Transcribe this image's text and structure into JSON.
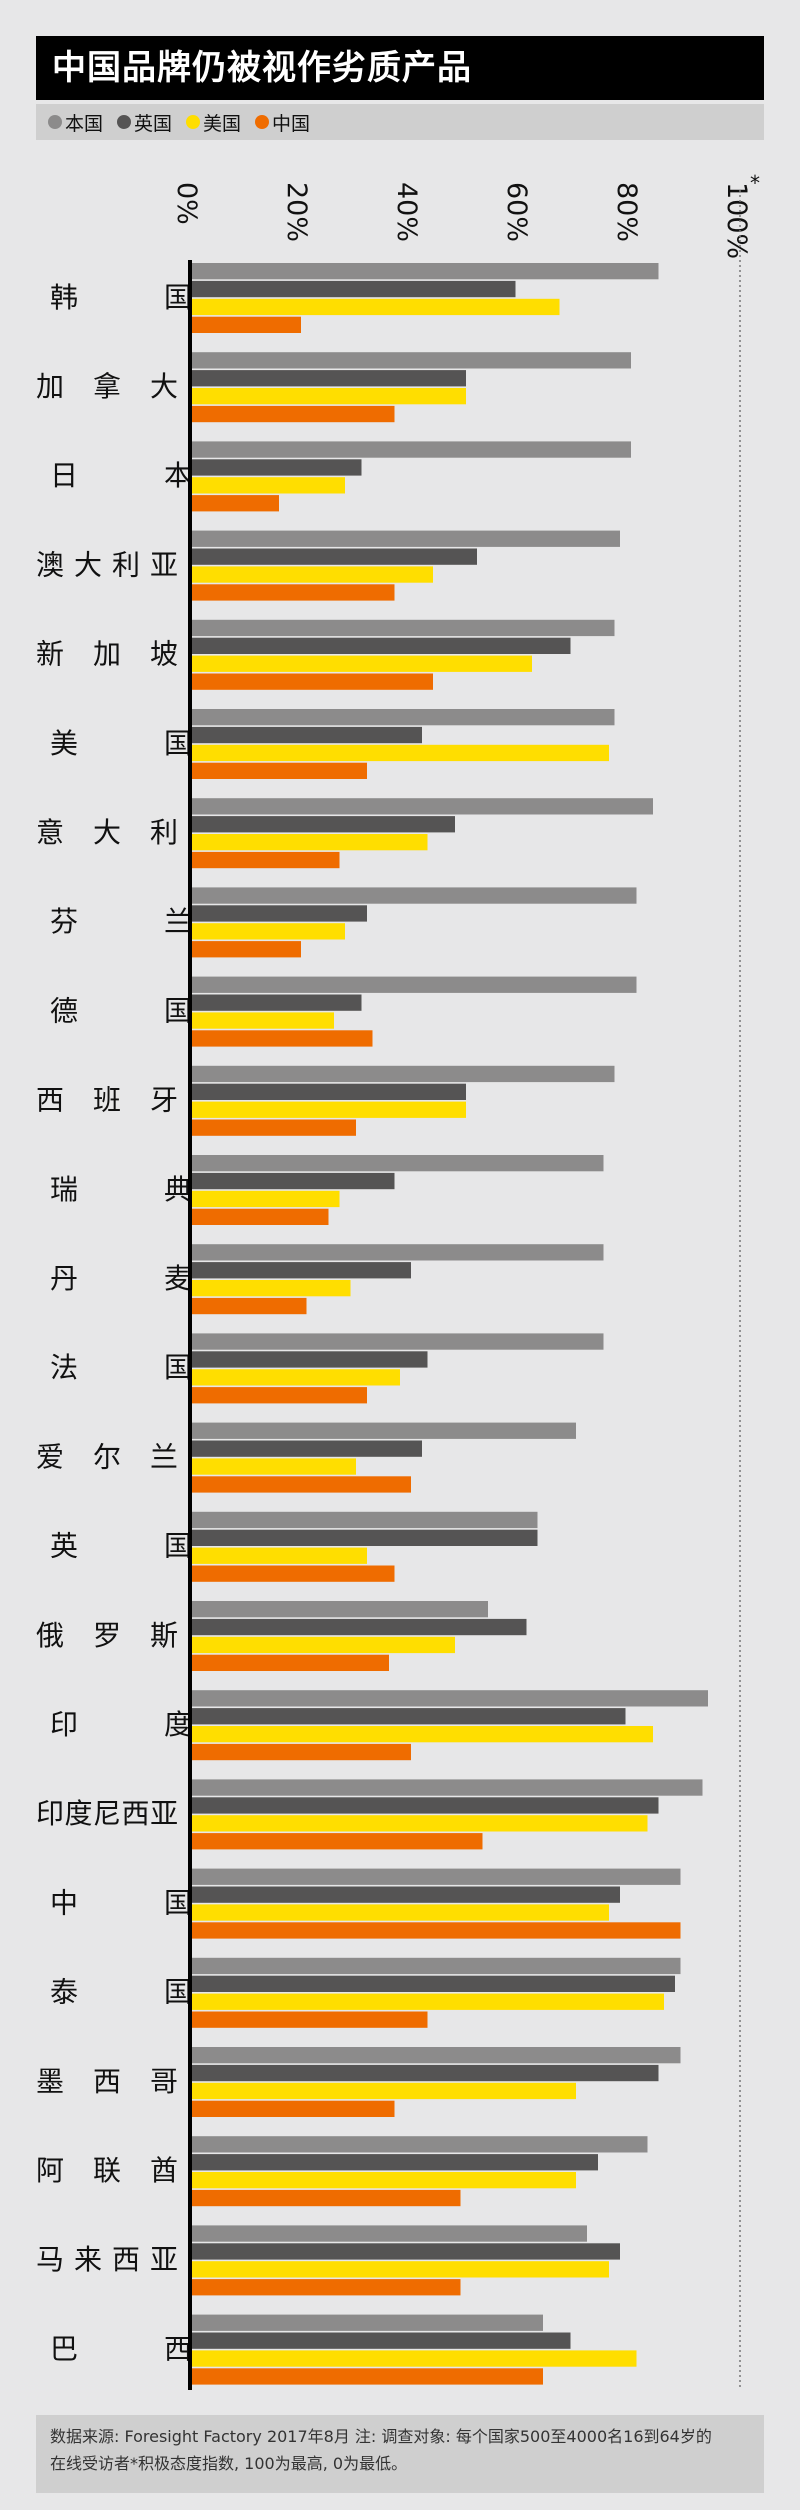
{
  "title": "中国品牌仍被视作劣质产品",
  "legend": [
    {
      "name": "本国",
      "color": "#8c8b8b"
    },
    {
      "name": "英国",
      "color": "#555454"
    },
    {
      "name": "美国",
      "color": "#ffde00"
    },
    {
      "name": "中国",
      "color": "#ef6c00"
    }
  ],
  "footer": {
    "line1": "数据来源: Foresight Factory 2017年8月 注: 调查对象: 每个国家500至4000名16到64岁的",
    "line2": "在线受访者*积极态度指数, 100为最高, 0为最低。"
  },
  "chart_data": {
    "type": "bar",
    "orientation": "horizontal",
    "xlim": [
      0,
      100
    ],
    "ticks": [
      "0%",
      "20%",
      "40%",
      "60%",
      "80%",
      "100%"
    ],
    "tick_values": [
      0,
      20,
      40,
      60,
      80,
      100
    ],
    "asterisk": "*",
    "grid": false,
    "legend_position": "top",
    "categories": [
      "韩国",
      "加拿大",
      "日本",
      "澳大利亚",
      "新加坡",
      "美国",
      "意大利",
      "芬兰",
      "德国",
      "西班牙",
      "瑞典",
      "丹麦",
      "法国",
      "爱尔兰",
      "英国",
      "俄罗斯",
      "印度",
      "印度尼西亚",
      "中国",
      "泰国",
      "墨西哥",
      "阿联酋",
      "马来西亚",
      "巴西"
    ],
    "series": [
      {
        "name": "本国",
        "color": "#8c8b8b",
        "values": [
          85,
          80,
          80,
          78,
          77,
          77,
          84,
          81,
          81,
          77,
          75,
          75,
          75,
          70,
          63,
          54,
          94,
          93,
          89,
          89,
          89,
          83,
          72,
          64
        ]
      },
      {
        "name": "英国",
        "color": "#555454",
        "values": [
          59,
          50,
          31,
          52,
          69,
          42,
          48,
          32,
          31,
          50,
          37,
          40,
          43,
          42,
          63,
          61,
          79,
          85,
          78,
          88,
          85,
          74,
          78,
          69
        ]
      },
      {
        "name": "美国",
        "color": "#ffde00",
        "values": [
          67,
          50,
          28,
          44,
          62,
          76,
          43,
          28,
          26,
          50,
          27,
          29,
          38,
          30,
          32,
          48,
          84,
          83,
          76,
          86,
          70,
          70,
          76,
          81
        ]
      },
      {
        "name": "中国",
        "color": "#ef6c00",
        "values": [
          20,
          37,
          16,
          37,
          44,
          32,
          27,
          20,
          33,
          30,
          25,
          21,
          32,
          40,
          37,
          36,
          40,
          53,
          89,
          43,
          37,
          49,
          49,
          64
        ]
      }
    ]
  }
}
